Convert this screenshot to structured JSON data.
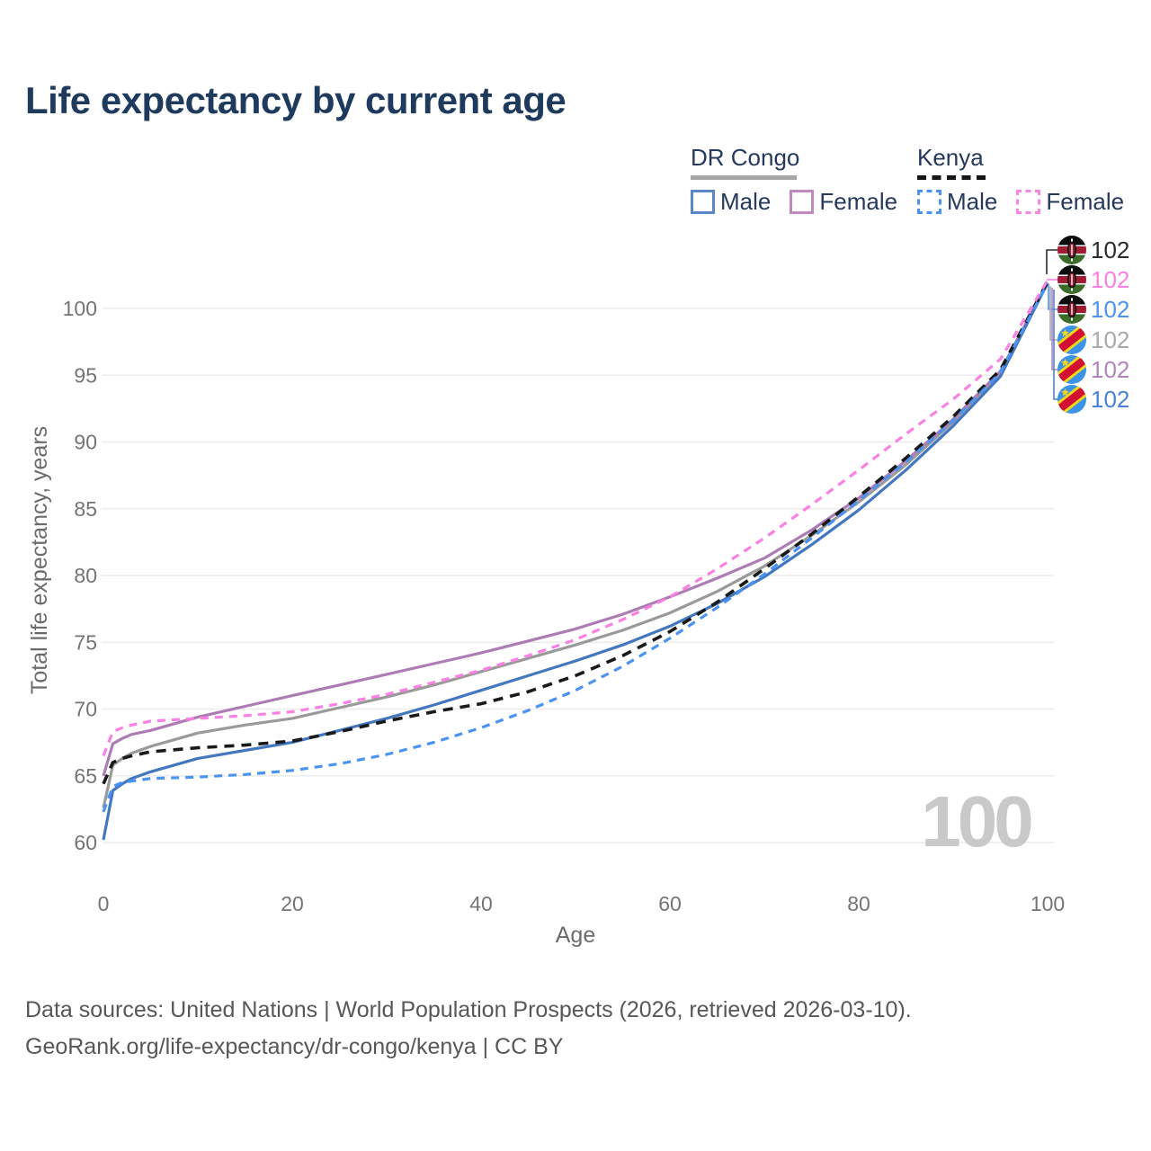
{
  "header": {
    "title": "Life expectancy by current age"
  },
  "legend": {
    "groups": [
      {
        "name": "DR Congo",
        "line_style": "solid",
        "underline_color": "#a6a6a6",
        "items": [
          {
            "label": "Male",
            "color": "#5a87c5"
          },
          {
            "label": "Female",
            "color": "#c289be"
          }
        ]
      },
      {
        "name": "Kenya",
        "line_style": "dashed",
        "underline_color": "#161616",
        "items": [
          {
            "label": "Male",
            "color": "#4b93f2"
          },
          {
            "label": "Female",
            "color": "#fb85e5"
          }
        ]
      }
    ]
  },
  "chart_data": {
    "type": "line",
    "title": "Life expectancy by current age",
    "xlabel": "Age",
    "ylabel": "Total life expectancy, years",
    "xlim": [
      0,
      100
    ],
    "ylim": [
      60,
      102
    ],
    "xticks": [
      0,
      20,
      40,
      60,
      80,
      100
    ],
    "yticks": [
      60,
      65,
      70,
      75,
      80,
      85,
      90,
      95,
      100
    ],
    "grid": "horizontal",
    "legend_position": "top-right",
    "watermark": "100",
    "x": [
      0,
      1,
      2,
      3,
      5,
      10,
      15,
      20,
      25,
      30,
      35,
      40,
      45,
      50,
      55,
      60,
      65,
      70,
      75,
      80,
      85,
      90,
      95,
      100
    ],
    "series": [
      {
        "key": "drc_both",
        "name": "DR Congo Both sexes",
        "country": "DR Congo",
        "sex": "Both",
        "color": "#9a9a9a",
        "dash": "solid",
        "end_value": 102,
        "values": [
          62.6,
          65.8,
          66.3,
          66.7,
          67.2,
          68.2,
          68.8,
          69.3,
          70.1,
          70.9,
          71.8,
          72.8,
          73.8,
          74.8,
          75.9,
          77.2,
          78.8,
          80.7,
          83.0,
          85.5,
          88.3,
          91.5,
          95.2,
          101.9
        ]
      },
      {
        "key": "drc_female",
        "name": "DR Congo Female",
        "country": "DR Congo",
        "sex": "Female",
        "color": "#ad7cb5",
        "dash": "solid",
        "end_value": 102,
        "values": [
          65.0,
          67.4,
          67.8,
          68.1,
          68.4,
          69.4,
          70.2,
          71.0,
          71.8,
          72.6,
          73.4,
          74.2,
          75.1,
          76.0,
          77.1,
          78.4,
          79.8,
          81.3,
          83.4,
          85.8,
          88.6,
          91.7,
          95.3,
          101.9
        ]
      },
      {
        "key": "drc_male",
        "name": "DR Congo Male",
        "country": "DR Congo",
        "sex": "Male",
        "color": "#4377bf",
        "dash": "solid",
        "end_value": 102,
        "values": [
          60.2,
          63.9,
          64.4,
          64.8,
          65.3,
          66.3,
          66.9,
          67.5,
          68.4,
          69.3,
          70.3,
          71.4,
          72.5,
          73.6,
          74.8,
          76.2,
          77.9,
          79.9,
          82.3,
          84.9,
          87.9,
          91.2,
          94.9,
          101.9
        ]
      },
      {
        "key": "kenya_both",
        "name": "Kenya Both sexes",
        "country": "Kenya",
        "sex": "Both",
        "color": "#1a1a1a",
        "dash": "dashed",
        "end_value": 102,
        "values": [
          64.4,
          66.0,
          66.3,
          66.5,
          66.8,
          67.1,
          67.3,
          67.6,
          68.3,
          69.1,
          69.8,
          70.4,
          71.3,
          72.5,
          74.0,
          75.8,
          78.0,
          80.5,
          83.1,
          85.9,
          88.8,
          91.9,
          95.4,
          102.0
        ]
      },
      {
        "key": "kenya_female",
        "name": "Kenya Female",
        "country": "Kenya",
        "sex": "Female",
        "color": "#fb80e3",
        "dash": "dashed",
        "end_value": 102,
        "values": [
          66.5,
          68.3,
          68.6,
          68.8,
          69.1,
          69.3,
          69.5,
          69.8,
          70.4,
          71.1,
          72.0,
          72.9,
          74.0,
          75.2,
          76.7,
          78.4,
          80.5,
          82.8,
          85.3,
          87.9,
          90.6,
          93.2,
          96.2,
          102.1
        ]
      },
      {
        "key": "kenya_male",
        "name": "Kenya Male",
        "country": "Kenya",
        "sex": "Male",
        "color": "#4b93f2",
        "dash": "dashed",
        "end_value": 102,
        "values": [
          62.3,
          64.2,
          64.5,
          64.6,
          64.8,
          64.9,
          65.1,
          65.4,
          65.9,
          66.6,
          67.5,
          68.6,
          69.9,
          71.4,
          73.2,
          75.3,
          77.6,
          80.1,
          82.8,
          85.6,
          88.5,
          91.6,
          95.2,
          101.9
        ]
      }
    ]
  },
  "end_labels": [
    {
      "flag": "kenya",
      "value": "102",
      "color": "#2b2b2b",
      "leader_color": "#2b2b2b"
    },
    {
      "flag": "kenya",
      "value": "102",
      "color": "#fb80e3",
      "leader_color": "#fb80e3"
    },
    {
      "flag": "kenya",
      "value": "102",
      "color": "#4b93f2",
      "leader_color": "#4b93f2"
    },
    {
      "flag": "drc",
      "value": "102",
      "color": "#a9a9a9",
      "leader_color": "#a9a9a9"
    },
    {
      "flag": "drc",
      "value": "102",
      "color": "#b284bd",
      "leader_color": "#b284bd"
    },
    {
      "flag": "drc",
      "value": "102",
      "color": "#4a82d8",
      "leader_color": "#4a82d8"
    }
  ],
  "footer": {
    "line1": "Data sources: United Nations | World Population Prospects (2026, retrieved 2026-03-10).",
    "line2": "GeoRank.org/life-expectancy/dr-congo/kenya | CC BY"
  },
  "colors": {
    "title_text": "#1e3a5c",
    "axis_text": "#747474",
    "gridline": "#ebebeb",
    "watermark": "#c9c9c9",
    "footer_text": "#575757"
  }
}
